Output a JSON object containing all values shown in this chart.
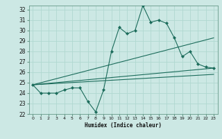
{
  "xlabel": "Humidex (Indice chaleur)",
  "bg_color": "#cce8e4",
  "line_color": "#1a6b5a",
  "grid_color": "#b0d8d0",
  "xlim": [
    -0.5,
    23.5
  ],
  "ylim": [
    22,
    32.4
  ],
  "xticks": [
    0,
    1,
    2,
    3,
    4,
    5,
    6,
    7,
    8,
    9,
    10,
    11,
    12,
    13,
    14,
    15,
    16,
    17,
    18,
    19,
    20,
    21,
    22,
    23
  ],
  "yticks": [
    22,
    23,
    24,
    25,
    26,
    27,
    28,
    29,
    30,
    31,
    32
  ],
  "series_main": {
    "x": [
      0,
      1,
      2,
      3,
      4,
      5,
      6,
      7,
      8,
      9,
      10,
      11,
      12,
      13,
      14,
      15,
      16,
      17,
      18,
      19,
      20,
      21,
      22,
      23
    ],
    "y": [
      24.8,
      24.0,
      24.0,
      24.0,
      24.3,
      24.5,
      24.5,
      23.2,
      22.2,
      24.3,
      28.0,
      30.3,
      29.7,
      30.0,
      32.4,
      30.8,
      31.0,
      30.7,
      29.3,
      27.5,
      28.0,
      26.8,
      26.5,
      26.4
    ]
  },
  "trend_lines": [
    {
      "x": [
        0,
        23
      ],
      "y": [
        24.8,
        29.3
      ]
    },
    {
      "x": [
        0,
        23
      ],
      "y": [
        24.8,
        26.4
      ]
    },
    {
      "x": [
        0,
        23
      ],
      "y": [
        24.8,
        25.8
      ]
    }
  ]
}
